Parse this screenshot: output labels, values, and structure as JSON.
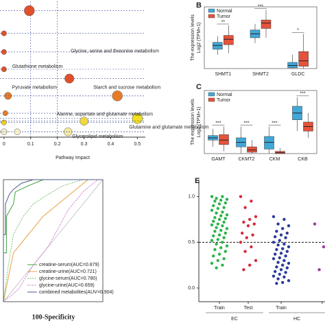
{
  "chart_data": [
    {
      "type": "scatter",
      "xlabel": "Pathway Impact",
      "xlim": [
        -0.015,
        0.53
      ],
      "ylim": [
        0,
        10.2
      ],
      "xticks": [
        0,
        0.1,
        0.2,
        0.3,
        0.4,
        0.5
      ],
      "x": [
        0.095,
        0,
        0,
        0,
        0.245,
        0.015,
        0.425,
        0.005,
        0,
        0.5,
        0.3,
        0.24,
        0,
        0.05
      ],
      "values": [
        9.5,
        7.8,
        6.4,
        5.1,
        4.4,
        3.1,
        3.1,
        1.8,
        1.1,
        1.4,
        1.2,
        0.4,
        0.4,
        0.4
      ],
      "sizes": [
        8,
        3,
        3,
        3,
        7,
        5,
        8,
        3,
        3,
        8,
        6,
        6,
        4,
        4
      ],
      "colors": [
        "#e0502a",
        "#e0502a",
        "#e0502a",
        "#e0502a",
        "#e0502a",
        "#e87b2a",
        "#e87b2a",
        "#e87b2a",
        "#f0d020",
        "#f0e020",
        "#f0d840",
        "#f5eaa0",
        "#f5f0c8",
        "#f5f0c8"
      ],
      "point_labels": [
        null,
        null,
        null,
        "Glutathione metabolism",
        "Glycine, serine and threonine metabolism",
        "Pyruvate metabolism",
        "Starch and sucrose metabolism",
        null,
        null,
        "Glutamine and glutamate metabolism",
        "Alanine, aspartate and glutamate metabolism",
        "Glycerolipid metabolism",
        null,
        null
      ]
    },
    {
      "type": "box",
      "panel": "B",
      "ylabel": [
        "The expression levels",
        "Log2 (TPM+1)"
      ],
      "ylim": [
        0,
        8
      ],
      "categories": [
        "SHMT1",
        "SHMT2",
        "GLDC"
      ],
      "annotations": [
        "**",
        "***",
        "*"
      ],
      "series": [
        {
          "name": "Normal",
          "color": "#41a8d8",
          "values": [
            [
              1.8,
              2.5,
              3.0,
              3.4,
              4.2
            ],
            [
              3.3,
              4.0,
              4.5,
              5.0,
              5.8
            ],
            [
              0,
              0.1,
              0.4,
              0.8,
              1.8
            ]
          ]
        },
        {
          "name": "Tumor",
          "color": "#e5533c",
          "values": [
            [
              2.0,
              3.1,
              3.8,
              4.3,
              5.6
            ],
            [
              4.0,
              5.2,
              5.9,
              6.3,
              7.6
            ],
            [
              0,
              0.3,
              1.0,
              2.2,
              4.5
            ]
          ]
        }
      ]
    },
    {
      "type": "box",
      "panel": "C",
      "ylabel": [
        "The expression levels",
        "Log2 (TPM+1)"
      ],
      "ylim": [
        0,
        14
      ],
      "categories": [
        "GAMT",
        "CKMT2",
        "CKM",
        "CKB"
      ],
      "annotations": [
        "***",
        "***",
        "***",
        "***"
      ],
      "series": [
        {
          "name": "Normal",
          "color": "#41a8d8",
          "values": [
            [
              1.5,
              3.0,
              3.5,
              4.0,
              5.5
            ],
            [
              0,
              1.5,
              2.5,
              3.5,
              6.0
            ],
            [
              0,
              1.0,
              2.5,
              3.8,
              6.0
            ],
            [
              5.0,
              7.5,
              9.0,
              10.5,
              12.5
            ]
          ]
        },
        {
          "name": "Tumor",
          "color": "#e5533c",
          "values": [
            [
              0.5,
              2.0,
              3.0,
              4.2,
              6.0
            ],
            [
              0,
              0.3,
              0.8,
              1.5,
              3.0
            ],
            [
              0,
              0,
              0.2,
              0.5,
              1.2
            ],
            [
              3.5,
              5.0,
              6.0,
              7.0,
              9.0
            ]
          ]
        }
      ]
    },
    {
      "type": "line",
      "xlabel": "100-Specificity",
      "xlim": [
        0,
        100
      ],
      "ylim": [
        0,
        100
      ],
      "series": [
        {
          "name": "creatine-serum(AUC=0.879)",
          "color": "#3aa03a",
          "dash": false,
          "x": [
            0,
            0,
            3,
            3,
            10,
            12,
            25,
            40,
            100
          ],
          "values": [
            0,
            40,
            40,
            70,
            80,
            90,
            95,
            100,
            100
          ]
        },
        {
          "name": "creatine-urine(AUC=0.721)",
          "color": "#e8a040",
          "dash": false,
          "x": [
            0,
            5,
            10,
            20,
            30,
            40,
            55,
            70,
            85,
            100
          ],
          "values": [
            0,
            20,
            40,
            50,
            60,
            70,
            80,
            90,
            100,
            100
          ]
        },
        {
          "name": "glycine-serum(AUC=0.780)",
          "color": "#7ac070",
          "dash": true,
          "x": [
            0,
            5,
            10,
            20,
            30,
            45,
            60,
            80,
            100
          ],
          "values": [
            0,
            30,
            55,
            70,
            80,
            88,
            95,
            100,
            100
          ]
        },
        {
          "name": "glycine-urine(AUC=0.659)",
          "color": "#d070d0",
          "dash": true,
          "x": [
            0,
            15,
            30,
            45,
            55,
            65,
            80,
            95,
            100
          ],
          "values": [
            0,
            10,
            30,
            45,
            60,
            75,
            90,
            100,
            100
          ]
        },
        {
          "name": "combined metabolites(AUV=0.904)",
          "color": "#4a5a8a",
          "dash": false,
          "x": [
            0,
            0,
            2,
            2,
            6,
            10,
            18,
            30,
            100
          ],
          "values": [
            0,
            55,
            55,
            80,
            88,
            92,
            97,
            100,
            100
          ]
        }
      ]
    },
    {
      "type": "strip",
      "panel": "E",
      "ylim": [
        -0.15,
        1.2
      ],
      "yticks": [
        {
          "value": 0,
          "label": "0.0"
        },
        0.5,
        {
          "value": 1,
          "label": "1.0"
        }
      ],
      "threshold": 0.5,
      "categories": [
        "Train",
        "Test",
        "Train",
        null
      ],
      "groups": [
        "EC",
        "HC"
      ],
      "series": [
        {
          "color": "#2db34a",
          "values": [
            1.0,
            1.0,
            0.98,
            0.97,
            0.96,
            0.95,
            0.93,
            0.92,
            0.9,
            0.88,
            0.87,
            0.85,
            0.83,
            0.82,
            0.8,
            0.79,
            0.77,
            0.76,
            0.75,
            0.73,
            0.72,
            0.7,
            0.69,
            0.68,
            0.66,
            0.65,
            0.63,
            0.62,
            0.6,
            0.58,
            0.57,
            0.55,
            0.53,
            0.52,
            0.5,
            0.48,
            0.46,
            0.44,
            0.42,
            0.4,
            0.37,
            0.35,
            0.32,
            0.3,
            0.27,
            0.25,
            0.22
          ]
        },
        {
          "color": "#d62a3a",
          "values": [
            1.0,
            0.95,
            0.88,
            0.78,
            0.75,
            0.72,
            0.7,
            0.68,
            0.6,
            0.58,
            0.55,
            0.5,
            0.45,
            0.4,
            0.3,
            0.25,
            0.2
          ]
        },
        {
          "color": "#2b3a9a",
          "values": [
            0.78,
            0.75,
            0.7,
            0.68,
            0.65,
            0.62,
            0.6,
            0.58,
            0.56,
            0.55,
            0.52,
            0.5,
            0.48,
            0.47,
            0.45,
            0.43,
            0.42,
            0.4,
            0.38,
            0.37,
            0.35,
            0.33,
            0.32,
            0.3,
            0.28,
            0.27,
            0.25,
            0.23,
            0.22,
            0.2,
            0.18,
            0.17,
            0.15,
            0.13,
            0.12,
            0.1,
            0.08,
            0.06,
            0.05
          ]
        },
        {
          "color": "#9a3a9a",
          "values": [
            0.7,
            0.45,
            0.2
          ]
        }
      ]
    }
  ]
}
